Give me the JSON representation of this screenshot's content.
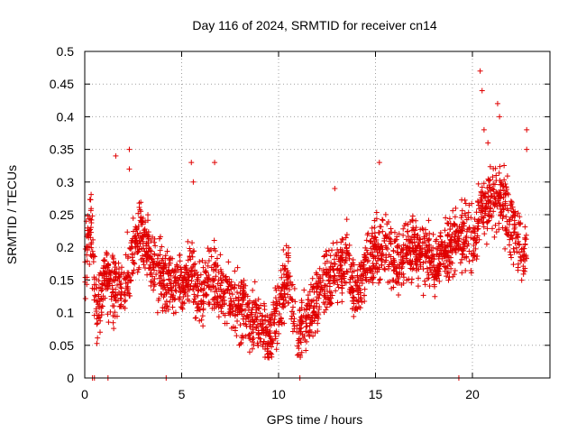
{
  "chart_data": {
    "type": "scatter",
    "title": "Day 116 of 2024, SRMTID for receiver cn14",
    "xlabel": "GPS time / hours",
    "ylabel": "SRMTID / TECUs",
    "xlim": [
      0,
      24
    ],
    "ylim": [
      0,
      0.5
    ],
    "x_ticks": [
      0,
      5,
      10,
      15,
      20
    ],
    "x_tick_labels": [
      "0",
      "5",
      "10",
      "15",
      "20"
    ],
    "y_ticks": [
      0,
      0.05,
      0.1,
      0.15,
      0.2,
      0.25,
      0.3,
      0.35,
      0.4,
      0.45,
      0.5
    ],
    "y_tick_labels": [
      "0",
      "0.05",
      "0.1",
      "0.15",
      "0.2",
      "0.25",
      "0.3",
      "0.35",
      "0.4",
      "0.45",
      "0.5"
    ],
    "grid": true,
    "marker": "plus",
    "color": "#e00000",
    "series": [
      {
        "name": "SRMTID",
        "trend": [
          [
            0.0,
            0.16
          ],
          [
            0.3,
            0.24
          ],
          [
            0.6,
            0.1
          ],
          [
            1.0,
            0.15
          ],
          [
            1.5,
            0.14
          ],
          [
            2.0,
            0.13
          ],
          [
            2.5,
            0.2
          ],
          [
            3.0,
            0.22
          ],
          [
            3.5,
            0.17
          ],
          [
            4.0,
            0.16
          ],
          [
            4.5,
            0.15
          ],
          [
            5.0,
            0.14
          ],
          [
            5.5,
            0.16
          ],
          [
            6.0,
            0.12
          ],
          [
            6.5,
            0.15
          ],
          [
            7.0,
            0.14
          ],
          [
            7.5,
            0.12
          ],
          [
            8.0,
            0.11
          ],
          [
            8.5,
            0.09
          ],
          [
            9.0,
            0.09
          ],
          [
            9.5,
            0.06
          ],
          [
            10.0,
            0.1
          ],
          [
            10.5,
            0.16
          ],
          [
            11.0,
            0.06
          ],
          [
            11.5,
            0.09
          ],
          [
            12.0,
            0.13
          ],
          [
            12.5,
            0.15
          ],
          [
            13.0,
            0.17
          ],
          [
            13.5,
            0.18
          ],
          [
            14.0,
            0.12
          ],
          [
            14.5,
            0.17
          ],
          [
            15.0,
            0.19
          ],
          [
            15.5,
            0.2
          ],
          [
            16.0,
            0.18
          ],
          [
            16.5,
            0.19
          ],
          [
            17.0,
            0.2
          ],
          [
            17.5,
            0.19
          ],
          [
            18.0,
            0.17
          ],
          [
            18.5,
            0.19
          ],
          [
            19.0,
            0.21
          ],
          [
            19.5,
            0.22
          ],
          [
            20.0,
            0.21
          ],
          [
            20.5,
            0.26
          ],
          [
            21.0,
            0.27
          ],
          [
            21.5,
            0.28
          ],
          [
            22.0,
            0.24
          ],
          [
            22.5,
            0.2
          ],
          [
            22.8,
            0.18
          ]
        ],
        "spread": 0.045,
        "outliers": [
          [
            20.4,
            0.47
          ],
          [
            20.5,
            0.44
          ],
          [
            21.3,
            0.42
          ],
          [
            21.4,
            0.4
          ],
          [
            22.8,
            0.38
          ],
          [
            22.8,
            0.35
          ],
          [
            1.6,
            0.34
          ],
          [
            2.3,
            0.35
          ],
          [
            5.5,
            0.33
          ],
          [
            6.7,
            0.33
          ],
          [
            15.2,
            0.33
          ],
          [
            12.9,
            0.29
          ],
          [
            2.3,
            0.32
          ],
          [
            5.6,
            0.3
          ],
          [
            20.8,
            0.36
          ],
          [
            20.6,
            0.38
          ]
        ],
        "zero_points": [
          0.4,
          0.5,
          1.2,
          4.2,
          11.1,
          19.3
        ]
      }
    ]
  }
}
